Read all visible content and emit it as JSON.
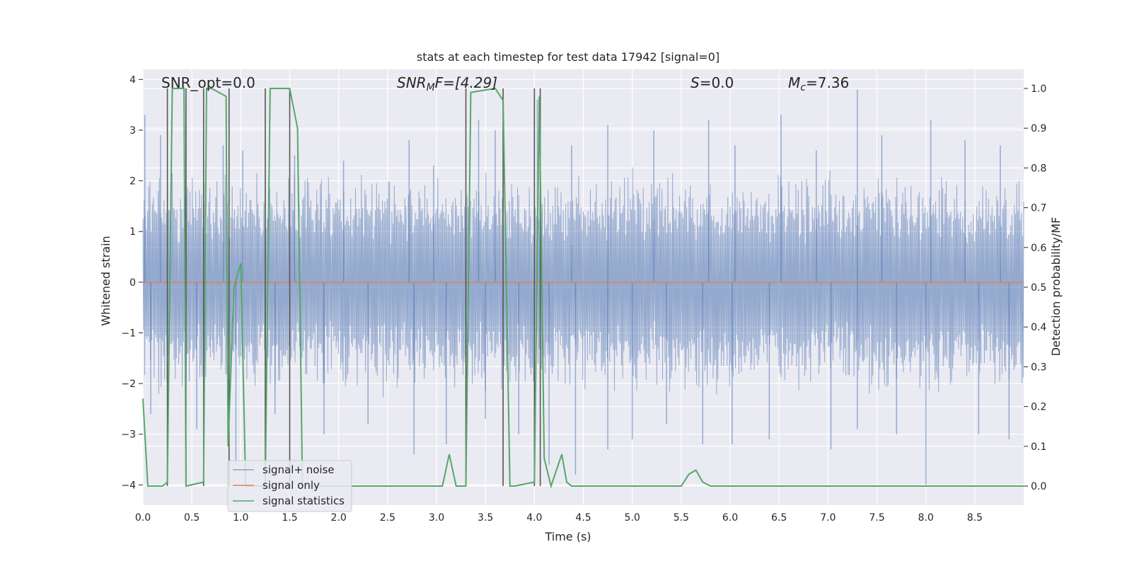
{
  "chart_data": {
    "type": "line",
    "title": "stats at each timestep for test data 17942 [signal=0]",
    "xlabel": "Time (s)",
    "ylabel": "Whitened strain",
    "ylabel_right": "Detection probability/MF",
    "xlim": [
      0.0,
      9.0
    ],
    "ylim": [
      -4.4,
      4.2
    ],
    "ylim_right": [
      -0.048,
      1.048
    ],
    "xticks": [
      0.0,
      0.5,
      1.0,
      1.5,
      2.0,
      2.5,
      3.0,
      3.5,
      4.0,
      4.5,
      5.0,
      5.5,
      6.0,
      6.5,
      7.0,
      7.5,
      8.0,
      8.5
    ],
    "xtick_labels": [
      "0.0",
      "0.5",
      "1.0",
      "1.5",
      "2.0",
      "2.5",
      "3.0",
      "3.5",
      "4.0",
      "4.5",
      "5.0",
      "5.5",
      "6.0",
      "6.5",
      "7.0",
      "7.5",
      "8.0",
      "8.5"
    ],
    "yticks": [
      4,
      3,
      2,
      1,
      0,
      -1,
      -2,
      -3,
      -4
    ],
    "ytick_labels": [
      "4",
      "3",
      "2",
      "1",
      "0",
      "−1",
      "−2",
      "−3",
      "−4"
    ],
    "yticks_right": [
      1.0,
      0.9,
      0.8,
      0.7,
      0.6,
      0.5,
      0.4,
      0.3,
      0.2,
      0.1,
      0.0
    ],
    "ytick_labels_right": [
      "1.0",
      "0.9",
      "0.8",
      "0.7",
      "0.6",
      "0.5",
      "0.4",
      "0.3",
      "0.2",
      "0.1",
      "0.0"
    ],
    "annotations": {
      "snr_opt": "SNR_opt=0.0",
      "snr_mf_prefix": "SNR",
      "snr_mf_sub": "M",
      "snr_mf_suffix": "F=[4.29]",
      "s_prefix": "S",
      "s_suffix": "=0.0",
      "mc_prefix": "M",
      "mc_sub": "c",
      "mc_suffix": "=7.36"
    },
    "legend": {
      "position": "lower-left",
      "entries": [
        "signal+ noise",
        "signal only",
        "signal statistics"
      ]
    },
    "colors": {
      "noise": "#4c72b0",
      "signal": "#dd8452",
      "stats": "#55a868",
      "vlines": "#555555",
      "plot_bg": "#eaeaf2",
      "grid": "#ffffff"
    },
    "series": [
      {
        "name": "signal+ noise",
        "axis": "left",
        "description_values": "noise band roughly -2 to +2 with spikes up to about 3.8 and down to about -4",
        "peaks_x": [
          0.02,
          0.18,
          0.44,
          0.82,
          1.02,
          1.55,
          2.05,
          2.72,
          2.97,
          3.43,
          3.6,
          4.03,
          4.38,
          4.75,
          5.22,
          5.78,
          6.05,
          6.52,
          6.88,
          7.3,
          7.55,
          8.05,
          8.4,
          8.76
        ],
        "peaks_y": [
          3.3,
          2.9,
          3.1,
          2.7,
          2.6,
          2.5,
          2.4,
          2.8,
          2.3,
          3.2,
          3.0,
          3.6,
          2.7,
          3.1,
          3.0,
          3.2,
          2.7,
          3.3,
          2.6,
          3.8,
          2.9,
          3.2,
          2.8,
          2.7
        ],
        "troughs_x": [
          0.08,
          0.55,
          0.95,
          1.35,
          1.85,
          2.3,
          2.77,
          3.1,
          3.5,
          3.84,
          4.15,
          4.42,
          4.75,
          5.0,
          5.35,
          5.72,
          6.02,
          6.4,
          7.03,
          7.3,
          7.7,
          8.0,
          8.54,
          8.85
        ],
        "troughs_y": [
          -2.6,
          -2.9,
          -3.6,
          -2.6,
          -3.0,
          -2.8,
          -3.4,
          -3.2,
          -2.7,
          -3.0,
          -3.6,
          -3.8,
          -3.3,
          -3.1,
          -2.8,
          -3.2,
          -3.2,
          -3.1,
          -3.3,
          -2.9,
          -3.0,
          -4.0,
          -3.0,
          -3.1
        ]
      },
      {
        "name": "signal only",
        "axis": "left",
        "x": [
          0.0,
          9.0
        ],
        "values": [
          0.0,
          0.0
        ]
      },
      {
        "name": "signal statistics",
        "axis": "right",
        "x": [
          0.0,
          0.05,
          0.2,
          0.25,
          0.3,
          0.42,
          0.44,
          0.62,
          0.65,
          0.7,
          0.85,
          0.87,
          0.93,
          1.0,
          1.05,
          1.12,
          1.18,
          1.25,
          1.3,
          1.5,
          1.58,
          1.63,
          2.2,
          3.06,
          3.13,
          3.2,
          3.3,
          3.35,
          3.6,
          3.68,
          3.75,
          3.8,
          4.0,
          4.05,
          4.1,
          4.17,
          4.28,
          4.33,
          4.38,
          4.45,
          5.5,
          5.58,
          5.65,
          5.72,
          5.8,
          5.9,
          9.0
        ],
        "values": [
          0.22,
          0.0,
          0.0,
          0.01,
          1.0,
          1.0,
          0.0,
          0.01,
          1.0,
          1.0,
          0.98,
          0.1,
          0.5,
          0.56,
          0.0,
          0.0,
          0.0,
          0.0,
          1.0,
          1.0,
          0.9,
          0.0,
          0.0,
          0.0,
          0.08,
          0.0,
          0.0,
          0.99,
          1.0,
          0.97,
          0.0,
          0.0,
          0.01,
          0.98,
          0.07,
          0.0,
          0.08,
          0.01,
          0.0,
          0.0,
          0.0,
          0.03,
          0.04,
          0.01,
          0.0,
          0.0,
          0.0
        ]
      }
    ],
    "vertical_lines": {
      "x": [
        0.25,
        0.44,
        0.62,
        0.88,
        1.25,
        1.5,
        3.3,
        3.68,
        4.0,
        4.06
      ],
      "y_top": [
        1.0,
        1.0,
        1.0,
        1.0,
        1.0,
        1.0,
        1.0,
        1.0,
        1.0,
        1.0
      ],
      "y_bottom": [
        0.0,
        0.0,
        0.0,
        0.0,
        0.0,
        0.0,
        0.0,
        0.0,
        0.0,
        0.0
      ]
    }
  }
}
